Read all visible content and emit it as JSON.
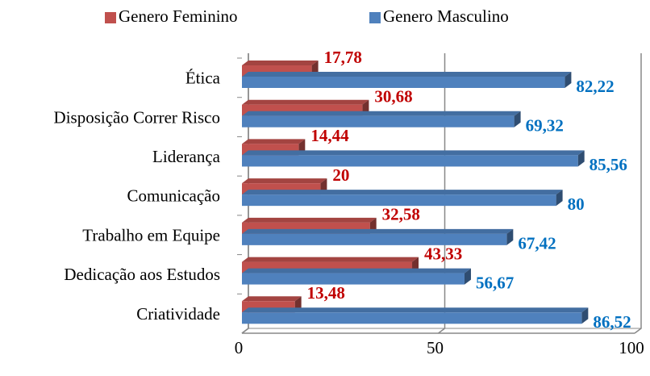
{
  "chart_data": {
    "type": "bar",
    "orientation": "horizontal",
    "categories": [
      "Ética",
      "Disposição Correr Risco",
      "Liderança",
      "Comunicação",
      "Trabalho em Equipe",
      "Dedicação aos Estudos",
      "Criatividade"
    ],
    "series": [
      {
        "name": "Genero Feminino",
        "color": "#c0504d",
        "label_color": "#c00000",
        "values": [
          17.78,
          30.68,
          14.44,
          20,
          32.58,
          43.33,
          13.48
        ],
        "value_labels": [
          "17,78",
          "30,68",
          "14,44",
          "20",
          "32,58",
          "43,33",
          "13,48"
        ]
      },
      {
        "name": "Genero Masculino",
        "color": "#4f81bd",
        "label_color": "#0070c0",
        "values": [
          82.22,
          69.32,
          85.56,
          80,
          67.42,
          56.67,
          86.52
        ],
        "value_labels": [
          "82,22",
          "69,32",
          "85,56",
          "80",
          "67,42",
          "56,67",
          "86,52"
        ]
      }
    ],
    "xlim": [
      0,
      100
    ],
    "xticks": [
      0,
      50,
      100
    ],
    "grid": true,
    "legend": "top"
  }
}
